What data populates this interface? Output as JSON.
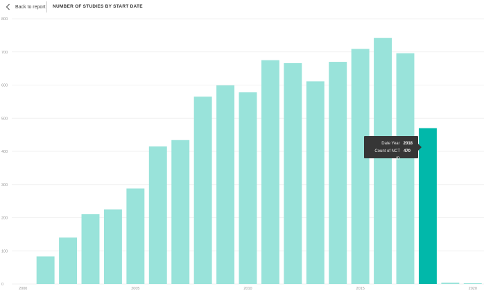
{
  "nav": {
    "back_label": "Back to report"
  },
  "visual": {
    "title": "NUMBER OF STUDIES BY START DATE"
  },
  "tooltip": {
    "rows": [
      {
        "label": "Date Year",
        "value": "2018"
      },
      {
        "label": "Count of NCT ID",
        "value": "470"
      }
    ]
  },
  "colors": {
    "bar": "#99e3da",
    "bar_highlight": "#01b8aa",
    "grid": "#ececec",
    "tooltip_bg": "#363636"
  },
  "icons": {
    "back": "chevron-left-icon"
  },
  "chart_data": {
    "type": "bar",
    "title": "NUMBER OF STUDIES BY START DATE",
    "x": [
      2001,
      2002,
      2003,
      2004,
      2005,
      2006,
      2007,
      2008,
      2009,
      2010,
      2011,
      2012,
      2013,
      2014,
      2015,
      2016,
      2017,
      2018,
      2019,
      2020
    ],
    "values": [
      83,
      140,
      211,
      225,
      288,
      415,
      434,
      565,
      599,
      578,
      675,
      666,
      611,
      670,
      709,
      742,
      696,
      470,
      4,
      2
    ],
    "highlighted_x": 2018,
    "ylim": [
      0,
      800
    ],
    "yticks": [
      0,
      100,
      200,
      300,
      400,
      500,
      600,
      700,
      800
    ],
    "xlim": [
      2000,
      2020
    ],
    "xticks": [
      2000,
      2005,
      2010,
      2015,
      2020
    ],
    "grid": true,
    "legend": "none"
  }
}
